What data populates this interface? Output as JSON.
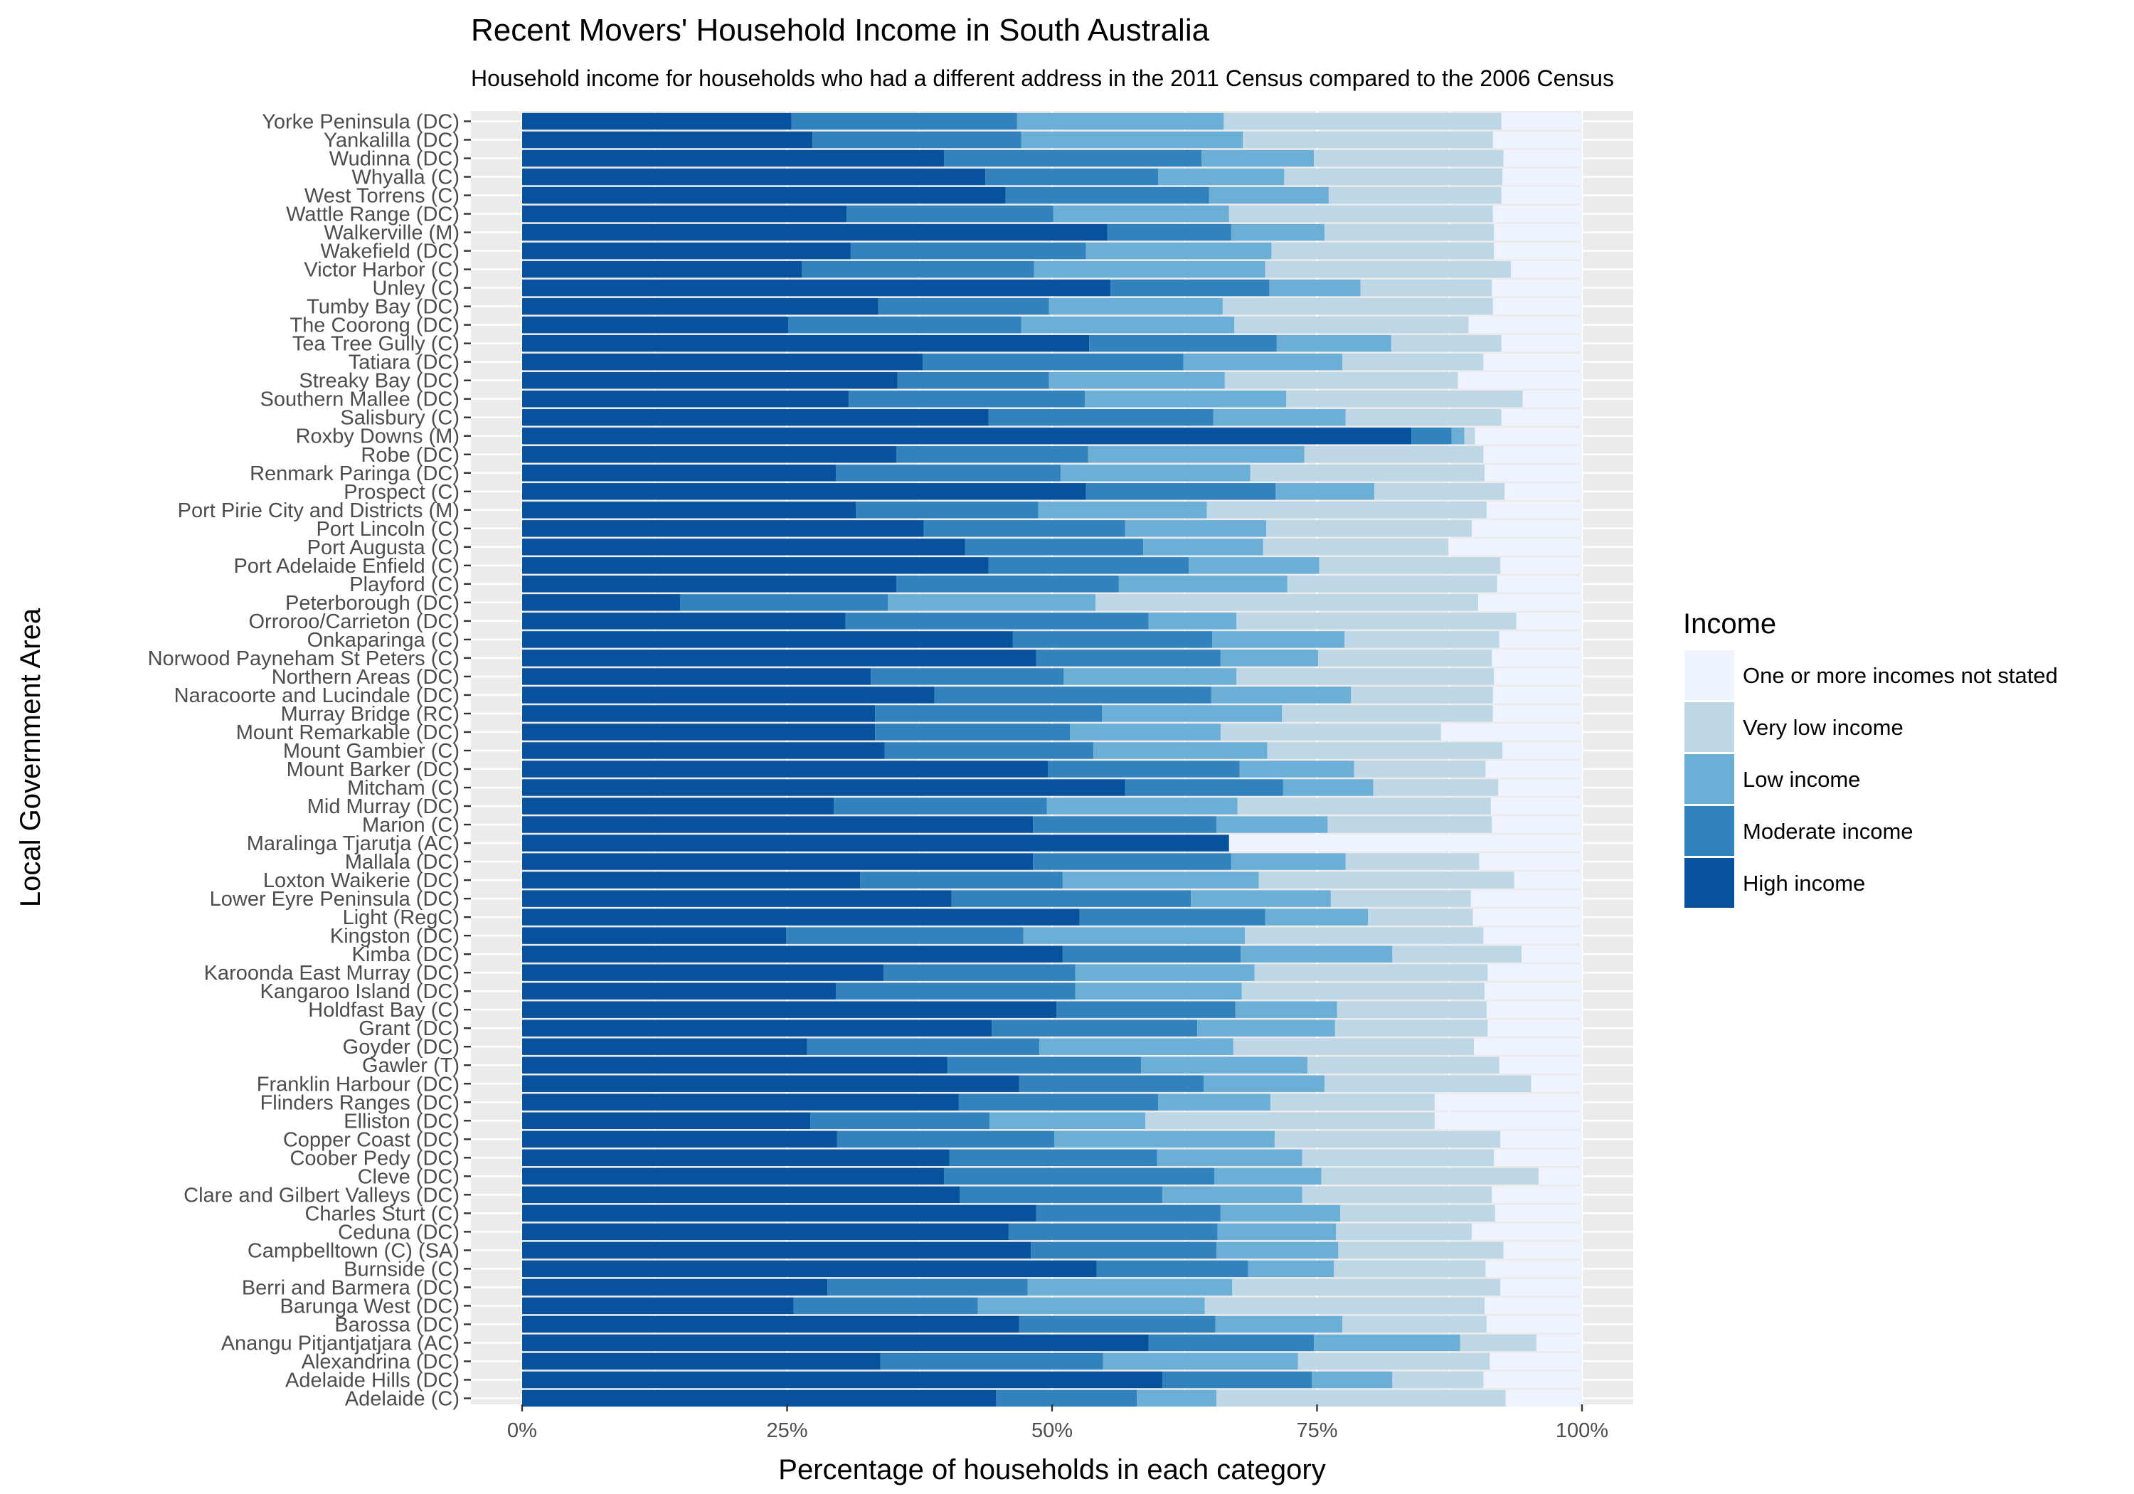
{
  "chart_data": {
    "type": "bar",
    "orientation": "horizontal",
    "stacked": true,
    "title": "Recent Movers' Household Income in South Australia",
    "subtitle": "Household income for households who had a different address in the 2011 Census compared to the 2006 Census",
    "xlabel": "Percentage of households in each category",
    "ylabel": "Local Government Area",
    "xlim": [
      0,
      100
    ],
    "x_ticks": [
      "0%",
      "25%",
      "50%",
      "75%",
      "100%"
    ],
    "grid": true,
    "legend_position": "right",
    "legend_title": "Income",
    "legend_order": [
      "One or more incomes not stated",
      "Very low income",
      "Low income",
      "Moderate income",
      "High income"
    ],
    "colors": {
      "High income": "#08519c",
      "Moderate income": "#3182bd",
      "Low income": "#6baed6",
      "Very low income": "#bdd7e7",
      "One or more incomes not stated": "#eff3ff",
      "panel_background": "#ebebeb",
      "gridline": "#ffffff"
    },
    "series_names": [
      "High income",
      "Moderate income",
      "Low income",
      "Very low income",
      "One or more incomes not stated"
    ],
    "categories": [
      "Yorke Peninsula (DC)",
      "Yankalilla (DC)",
      "Wudinna (DC)",
      "Whyalla (C)",
      "West Torrens (C)",
      "Wattle Range (DC)",
      "Walkerville (M)",
      "Wakefield (DC)",
      "Victor Harbor (C)",
      "Unley (C)",
      "Tumby Bay (DC)",
      "The Coorong (DC)",
      "Tea Tree Gully (C)",
      "Tatiara (DC)",
      "Streaky Bay (DC)",
      "Southern Mallee (DC)",
      "Salisbury (C)",
      "Roxby Downs (M)",
      "Robe (DC)",
      "Renmark Paringa (DC)",
      "Prospect (C)",
      "Port Pirie City and Districts (M)",
      "Port Lincoln (C)",
      "Port Augusta (C)",
      "Port Adelaide Enfield (C)",
      "Playford (C)",
      "Peterborough (DC)",
      "Orroroo/Carrieton (DC)",
      "Onkaparinga (C)",
      "Norwood Payneham St Peters (C)",
      "Northern Areas (DC)",
      "Naracoorte and Lucindale (DC)",
      "Murray Bridge (RC)",
      "Mount Remarkable (DC)",
      "Mount Gambier (C)",
      "Mount Barker (DC)",
      "Mitcham (C)",
      "Mid Murray (DC)",
      "Marion (C)",
      "Maralinga Tjarutja (AC)",
      "Mallala (DC)",
      "Loxton Waikerie (DC)",
      "Lower Eyre Peninsula (DC)",
      "Light (RegC)",
      "Kingston (DC)",
      "Kimba (DC)",
      "Karoonda East Murray (DC)",
      "Kangaroo Island (DC)",
      "Holdfast Bay (C)",
      "Grant (DC)",
      "Goyder (DC)",
      "Gawler (T)",
      "Franklin Harbour (DC)",
      "Flinders Ranges (DC)",
      "Elliston (DC)",
      "Copper Coast (DC)",
      "Coober Pedy (DC)",
      "Cleve (DC)",
      "Clare and Gilbert Valleys (DC)",
      "Charles Sturt (C)",
      "Ceduna (DC)",
      "Campbelltown (C) (SA)",
      "Burnside (C)",
      "Berri and Barmera (DC)",
      "Barunga West (DC)",
      "Barossa (DC)",
      "Anangu Pitjantjatjara (AC)",
      "Alexandrina (DC)",
      "Adelaide Hills (DC)",
      "Adelaide (C)"
    ],
    "values": [
      [
        25.4,
        21.3,
        19.5,
        26.2,
        7.6
      ],
      [
        27.4,
        19.7,
        20.9,
        23.6,
        8.4
      ],
      [
        39.8,
        24.3,
        10.6,
        17.9,
        7.4
      ],
      [
        43.7,
        16.3,
        11.9,
        20.6,
        7.5
      ],
      [
        45.6,
        19.2,
        11.3,
        16.3,
        7.6
      ],
      [
        30.6,
        19.5,
        16.6,
        24.9,
        8.4
      ],
      [
        55.2,
        11.7,
        8.8,
        16.0,
        8.3
      ],
      [
        31.0,
        22.2,
        17.5,
        21.0,
        8.3
      ],
      [
        26.4,
        21.9,
        21.8,
        23.2,
        6.7
      ],
      [
        55.5,
        15.0,
        8.6,
        12.4,
        8.5
      ],
      [
        33.6,
        16.1,
        16.4,
        25.5,
        8.4
      ],
      [
        25.1,
        22.0,
        20.1,
        22.1,
        10.7
      ],
      [
        53.5,
        17.7,
        10.8,
        10.4,
        7.6
      ],
      [
        37.8,
        24.6,
        15.0,
        13.3,
        9.3
      ],
      [
        35.4,
        14.3,
        16.6,
        22.0,
        11.7
      ],
      [
        30.8,
        22.3,
        19.0,
        22.3,
        5.6
      ],
      [
        44.0,
        21.2,
        12.5,
        14.7,
        7.6
      ],
      [
        83.9,
        3.8,
        1.2,
        1.0,
        10.1
      ],
      [
        35.3,
        18.1,
        20.4,
        16.9,
        9.3
      ],
      [
        29.6,
        21.2,
        17.9,
        22.1,
        9.2
      ],
      [
        53.2,
        17.9,
        9.3,
        12.3,
        7.3
      ],
      [
        31.5,
        17.2,
        15.9,
        26.4,
        9.0
      ],
      [
        37.9,
        19.0,
        13.3,
        19.4,
        10.4
      ],
      [
        41.8,
        16.8,
        11.3,
        17.5,
        12.6
      ],
      [
        44.0,
        18.9,
        12.3,
        17.1,
        7.7
      ],
      [
        35.3,
        21.0,
        15.9,
        19.8,
        8.0
      ],
      [
        14.9,
        19.6,
        19.6,
        36.1,
        9.8
      ],
      [
        30.5,
        28.6,
        8.3,
        26.4,
        6.2
      ],
      [
        46.3,
        18.8,
        12.5,
        14.6,
        7.8
      ],
      [
        48.5,
        17.4,
        9.2,
        16.4,
        8.5
      ],
      [
        32.9,
        18.2,
        16.3,
        24.3,
        8.3
      ],
      [
        38.9,
        26.1,
        13.2,
        13.4,
        8.4
      ],
      [
        33.3,
        21.4,
        17.0,
        19.9,
        8.4
      ],
      [
        33.3,
        18.4,
        14.2,
        20.8,
        13.3
      ],
      [
        34.2,
        19.7,
        16.4,
        22.2,
        7.5
      ],
      [
        49.6,
        18.1,
        10.8,
        12.4,
        9.1
      ],
      [
        56.9,
        14.9,
        8.5,
        11.8,
        7.9
      ],
      [
        29.4,
        20.1,
        18.0,
        23.9,
        8.6
      ],
      [
        48.2,
        17.3,
        10.5,
        15.5,
        8.5
      ],
      [
        66.7,
        0.0,
        0.0,
        0.0,
        33.3
      ],
      [
        48.2,
        18.7,
        10.8,
        12.6,
        9.7
      ],
      [
        31.9,
        19.1,
        18.5,
        24.1,
        6.4
      ],
      [
        40.5,
        22.6,
        13.2,
        13.2,
        10.5
      ],
      [
        52.6,
        17.5,
        9.7,
        9.9,
        10.3
      ],
      [
        24.9,
        22.4,
        20.9,
        22.5,
        9.3
      ],
      [
        51.0,
        16.8,
        14.3,
        12.2,
        5.7
      ],
      [
        34.1,
        18.1,
        16.9,
        22.0,
        8.9
      ],
      [
        29.6,
        22.6,
        15.7,
        22.9,
        9.2
      ],
      [
        50.4,
        16.9,
        9.6,
        14.1,
        9.0
      ],
      [
        44.3,
        19.4,
        13.0,
        14.4,
        8.9
      ],
      [
        26.9,
        21.9,
        18.3,
        22.7,
        10.2
      ],
      [
        40.1,
        18.3,
        15.7,
        18.1,
        7.8
      ],
      [
        46.9,
        17.4,
        11.4,
        19.5,
        4.8
      ],
      [
        41.2,
        18.8,
        10.6,
        15.5,
        13.9
      ],
      [
        27.2,
        16.9,
        14.7,
        27.3,
        13.9
      ],
      [
        29.7,
        20.5,
        20.8,
        21.3,
        7.7
      ],
      [
        40.3,
        19.6,
        13.7,
        18.1,
        8.3
      ],
      [
        39.8,
        25.5,
        10.1,
        20.5,
        4.1
      ],
      [
        41.3,
        19.1,
        13.2,
        17.9,
        8.5
      ],
      [
        48.5,
        17.4,
        11.3,
        14.6,
        8.2
      ],
      [
        45.9,
        19.7,
        11.2,
        12.8,
        10.4
      ],
      [
        48.0,
        17.5,
        11.5,
        15.6,
        7.4
      ],
      [
        54.2,
        14.3,
        8.1,
        14.3,
        9.1
      ],
      [
        28.8,
        18.9,
        19.3,
        25.3,
        7.7
      ],
      [
        25.6,
        17.4,
        21.4,
        26.4,
        9.2
      ],
      [
        46.9,
        18.5,
        12.0,
        13.6,
        9.0
      ],
      [
        59.1,
        15.6,
        13.8,
        7.2,
        4.3
      ],
      [
        33.8,
        21.0,
        18.4,
        18.1,
        8.7
      ],
      [
        60.4,
        14.1,
        7.6,
        8.6,
        9.3
      ],
      [
        44.7,
        13.3,
        7.5,
        27.3,
        7.2
      ]
    ]
  }
}
